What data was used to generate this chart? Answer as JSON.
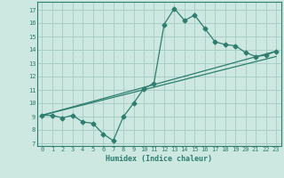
{
  "xlabel": "Humidex (Indice chaleur)",
  "ylabel": "",
  "bg_color": "#cce8e0",
  "grid_color": "#aacfc8",
  "line_color": "#2e7d6e",
  "xlim": [
    -0.5,
    23.5
  ],
  "ylim": [
    6.8,
    17.6
  ],
  "xticks": [
    0,
    1,
    2,
    3,
    4,
    5,
    6,
    7,
    8,
    9,
    10,
    11,
    12,
    13,
    14,
    15,
    16,
    17,
    18,
    19,
    20,
    21,
    22,
    23
  ],
  "yticks": [
    7,
    8,
    9,
    10,
    11,
    12,
    13,
    14,
    15,
    16,
    17
  ],
  "line1_x": [
    0,
    1,
    2,
    3,
    4,
    5,
    6,
    7,
    8,
    9,
    10,
    11,
    12,
    13,
    14,
    15,
    16,
    17,
    18,
    19,
    20,
    21,
    22,
    23
  ],
  "line1_y": [
    9.1,
    9.1,
    8.9,
    9.1,
    8.6,
    8.5,
    7.7,
    7.2,
    9.0,
    10.0,
    11.1,
    11.5,
    15.9,
    17.1,
    16.2,
    16.6,
    15.6,
    14.6,
    14.4,
    14.3,
    13.8,
    13.5,
    13.6,
    13.9
  ],
  "line2_x": [
    0,
    23
  ],
  "line2_y": [
    9.1,
    13.9
  ],
  "line3_x": [
    0,
    23
  ],
  "line3_y": [
    9.1,
    13.5
  ]
}
